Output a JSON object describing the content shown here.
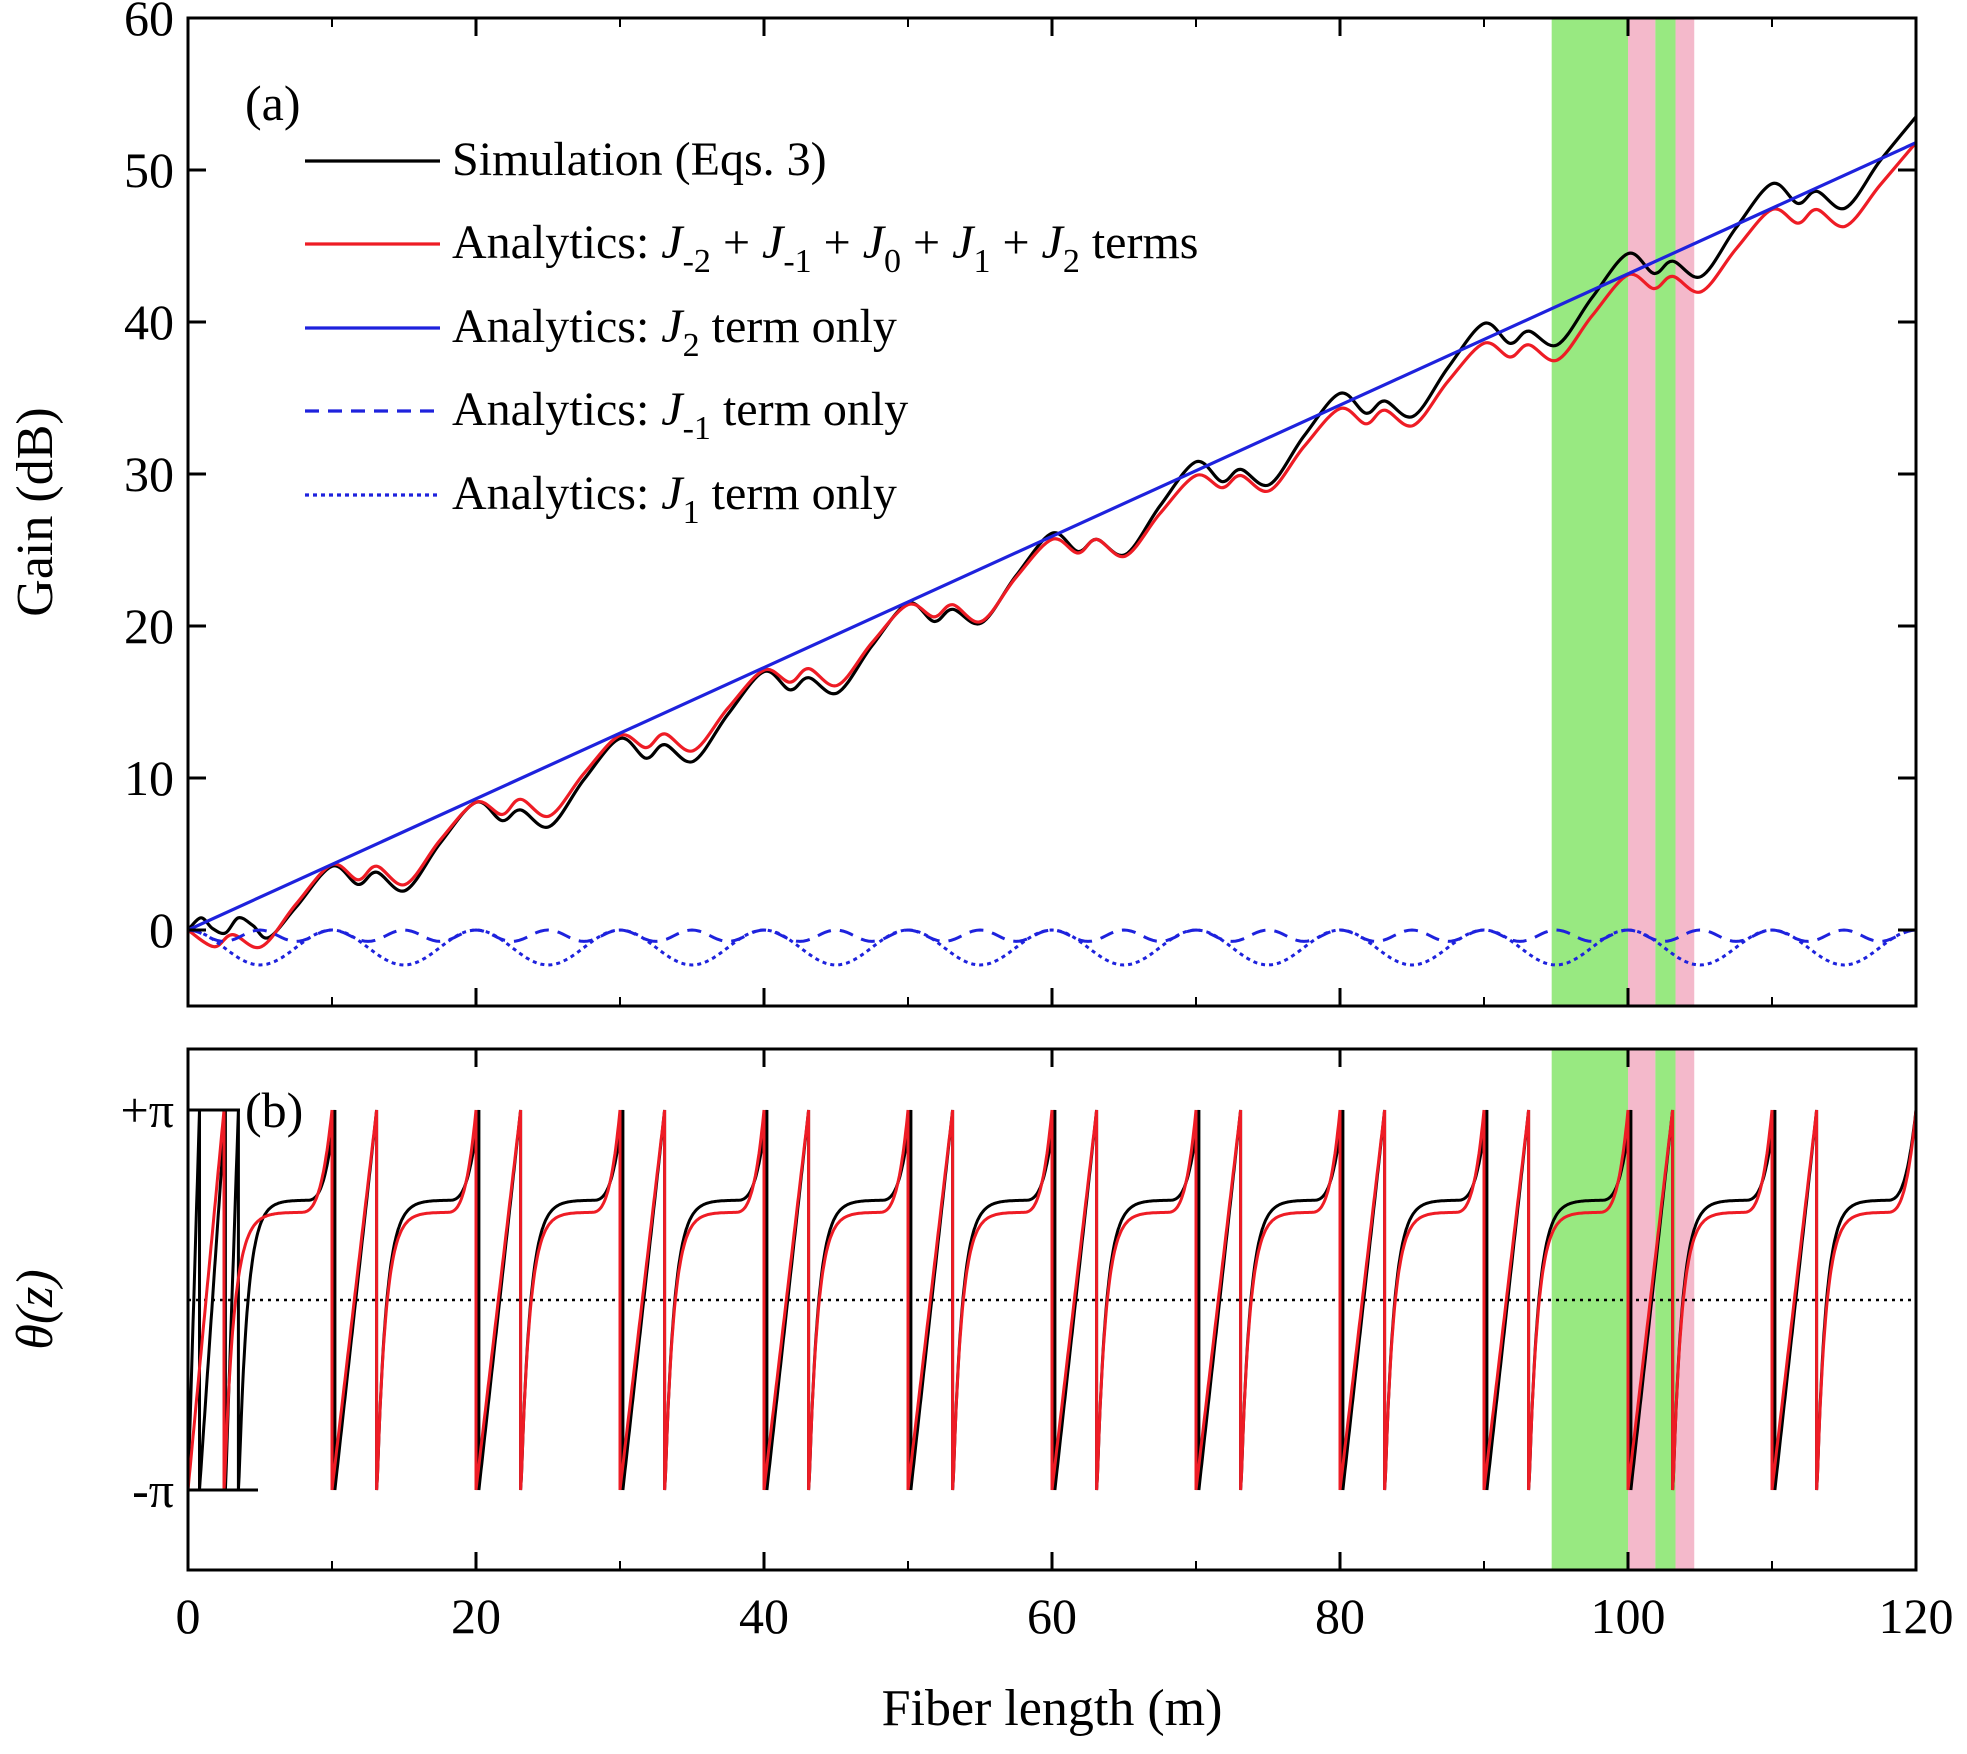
{
  "chart_data": [
    {
      "panel_label": "(a)",
      "type": "line",
      "xlabel": "",
      "ylabel": "Gain (dB)",
      "xlim": [
        0,
        120
      ],
      "ylim": [
        -5,
        60
      ],
      "x_ticks": [
        0,
        20,
        40,
        60,
        80,
        100,
        120
      ],
      "y_ticks": [
        0,
        10,
        20,
        30,
        40,
        50,
        60
      ],
      "y_tick_labels": [
        "0",
        "10",
        "20",
        "30",
        "40",
        "50",
        "60"
      ],
      "legend_placement": "top-left",
      "shaded_regions": [
        {
          "from": 94.7,
          "to": 100.0,
          "color": "#98e981"
        },
        {
          "from": 100.0,
          "to": 101.9,
          "color": "#f4b9cb"
        },
        {
          "from": 101.9,
          "to": 103.3,
          "color": "#98e981"
        },
        {
          "from": 103.3,
          "to": 104.6,
          "color": "#f4b9cb"
        }
      ],
      "series": [
        {
          "legend": {
            "pre": "Simulation (Eqs. 3)"
          },
          "color": "#000000",
          "dash": "solid",
          "function": "full_simulation",
          "x": [
            0,
            0.9,
            1.7,
            2.6,
            3.5,
            4.5,
            5.6,
            7.5,
            10.0,
            11.8,
            13.1,
            15.1,
            17.5,
            20.0,
            21.8,
            23.1,
            25.1,
            27.5,
            30.0,
            31.8,
            33.1,
            35.1,
            37.5,
            40.0,
            41.8,
            43.1,
            45.1,
            47.5,
            50.0,
            51.8,
            53.1,
            55.1,
            57.5,
            60.0,
            61.8,
            63.1,
            65.1,
            67.5,
            70.0,
            71.8,
            73.1,
            75.1,
            77.5,
            80.0,
            81.8,
            83.1,
            85.1,
            87.5,
            90.0,
            91.8,
            93.1,
            95.1,
            97.5,
            100.0,
            101.8,
            103.1,
            105.1,
            107.5,
            110.0,
            111.8,
            113.1,
            115.1,
            117.5,
            120.0
          ],
          "y": [
            0,
            0.8,
            0.1,
            -0.2,
            0.8,
            0.3,
            -0.5,
            1.5,
            4.2,
            3.0,
            3.8,
            2.6,
            5.7,
            8.4,
            7.2,
            7.9,
            6.8,
            9.9,
            12.6,
            11.3,
            12.2,
            11.1,
            14.2,
            17.0,
            15.8,
            16.6,
            15.6,
            18.7,
            21.5,
            20.3,
            21.1,
            20.2,
            23.3,
            26.1,
            24.9,
            25.7,
            24.7,
            27.9,
            30.8,
            29.5,
            30.3,
            29.3,
            32.5,
            35.3,
            34.0,
            34.8,
            33.8,
            37.0,
            39.9,
            38.6,
            39.4,
            38.5,
            41.6,
            44.5,
            43.2,
            44.0,
            43.0,
            46.2,
            49.1,
            47.8,
            48.6,
            47.5,
            50.6,
            53.5
          ]
        },
        {
          "legend": {
            "pre": "Analytics: ",
            "terms": [
              [
                "J",
                "-2"
              ],
              [
                "J",
                "-1"
              ],
              [
                "J",
                "0"
              ],
              [
                "J",
                "1"
              ],
              [
                "J",
                "2"
              ]
            ],
            "post": " terms"
          },
          "color": "#ee1c25",
          "dash": "solid",
          "function": "analytics_J_sum",
          "x": [
            0,
            1.8,
            3.1,
            5.1,
            7.5,
            10.0,
            11.8,
            13.1,
            15.1,
            17.5,
            20.0,
            21.8,
            23.1,
            25.1,
            27.5,
            30.0,
            31.8,
            33.1,
            35.1,
            37.5,
            40.0,
            41.8,
            43.1,
            45.1,
            47.5,
            50.0,
            51.8,
            53.1,
            55.1,
            57.5,
            60.0,
            61.8,
            63.1,
            65.1,
            67.5,
            70.0,
            71.8,
            73.1,
            75.1,
            77.5,
            80.0,
            81.8,
            83.1,
            85.1,
            87.5,
            90.0,
            91.8,
            93.1,
            95.1,
            97.5,
            100.0,
            101.8,
            103.1,
            105.1,
            107.5,
            110.0,
            111.8,
            113.1,
            115.1,
            117.5,
            120.0
          ],
          "y": [
            0,
            -1.1,
            -0.3,
            -1.1,
            1.7,
            4.3,
            3.3,
            4.2,
            3.0,
            5.9,
            8.4,
            7.6,
            8.6,
            7.5,
            10.3,
            12.8,
            12.0,
            12.9,
            11.8,
            14.6,
            17.1,
            16.3,
            17.2,
            16.1,
            18.9,
            21.4,
            20.6,
            21.4,
            20.3,
            23.2,
            25.7,
            24.8,
            25.7,
            24.6,
            27.4,
            29.9,
            29.1,
            29.9,
            28.9,
            31.8,
            34.3,
            33.3,
            34.2,
            33.2,
            36.1,
            38.6,
            37.7,
            38.5,
            37.5,
            40.4,
            43.1,
            42.2,
            43.0,
            42.0,
            44.8,
            47.4,
            46.5,
            47.4,
            46.3,
            49.0,
            51.8
          ]
        },
        {
          "legend": {
            "pre": "Analytics: ",
            "terms": [
              [
                "J",
                "2"
              ]
            ],
            "post": " term only"
          },
          "color": "#1e22dd",
          "dash": "solid",
          "function": "analytics_J2",
          "x": [
            0,
            120
          ],
          "y": [
            0,
            51.8
          ]
        },
        {
          "legend": {
            "pre": "Analytics: ",
            "terms": [
              [
                "J",
                "-1"
              ]
            ],
            "post": " term only"
          },
          "color": "#1e22dd",
          "dash": "dashed",
          "function": "analytics_Jm1",
          "x": [
            0,
            2.5,
            5.0,
            7.5,
            10.0,
            12.5,
            15.0,
            17.5,
            20.0,
            22.5,
            25.0,
            27.5,
            30.0,
            32.5,
            35.0,
            37.5,
            40.0,
            42.5,
            45.0,
            47.5,
            50.0,
            52.5,
            55.0,
            57.5,
            60.0,
            62.5,
            65.0,
            67.5,
            70.0,
            72.5,
            75.0,
            77.5,
            80.0,
            82.5,
            85.0,
            87.5,
            90.0,
            92.5,
            95.0,
            97.5,
            100.0,
            102.5,
            105.0,
            107.5,
            110.0,
            112.5,
            115.0,
            117.5,
            120.0
          ],
          "y": [
            0,
            -0.75,
            0,
            -0.75,
            0,
            -0.75,
            0,
            -0.75,
            0,
            -0.75,
            0,
            -0.75,
            0,
            -0.75,
            0,
            -0.75,
            0,
            -0.75,
            0,
            -0.75,
            0,
            -0.75,
            0,
            -0.75,
            0,
            -0.75,
            0,
            -0.75,
            0,
            -0.75,
            0,
            -0.75,
            0,
            -0.75,
            0,
            -0.75,
            0,
            -0.75,
            0,
            -0.75,
            0,
            -0.75,
            0,
            -0.75,
            0,
            -0.75,
            0,
            -0.75,
            0
          ]
        },
        {
          "legend": {
            "pre": "Analytics: ",
            "terms": [
              [
                "J",
                "1"
              ]
            ],
            "post": " term only"
          },
          "color": "#1e22dd",
          "dash": "dotted",
          "function": "analytics_J1",
          "x": [
            0,
            5,
            10,
            15,
            20,
            25,
            30,
            35,
            40,
            45,
            50,
            55,
            60,
            65,
            70,
            75,
            80,
            85,
            90,
            95,
            100,
            105,
            110,
            115,
            120
          ],
          "y": [
            0,
            -2.3,
            0,
            -2.3,
            0,
            -2.3,
            0,
            -2.3,
            0,
            -2.3,
            0,
            -2.3,
            0,
            -2.3,
            0,
            -2.3,
            0,
            -2.3,
            0,
            -2.3,
            0,
            -2.3,
            0,
            -2.3,
            0
          ]
        }
      ]
    },
    {
      "panel_label": "(b)",
      "type": "line",
      "xlabel": "Fiber length (m)",
      "ylabel": "θ(z)",
      "xlim": [
        0,
        120
      ],
      "ylim": [
        -3.14159,
        3.14159
      ],
      "x_ticks": [
        0,
        20,
        40,
        60,
        80,
        100,
        120
      ],
      "x_tick_labels": [
        "0",
        "20",
        "40",
        "60",
        "80",
        "100",
        "120"
      ],
      "y_ticks": [
        3.14159,
        -3.14159
      ],
      "y_tick_labels": [
        "+π",
        "-π"
      ],
      "reference_line": {
        "y": 0,
        "style": "dotted",
        "color": "#000000"
      },
      "shaded_regions": [
        {
          "from": 94.7,
          "to": 100.0,
          "color": "#98e981"
        },
        {
          "from": 100.0,
          "to": 101.9,
          "color": "#f4b9cb"
        },
        {
          "from": 101.9,
          "to": 103.3,
          "color": "#98e981"
        },
        {
          "from": 103.3,
          "to": 104.6,
          "color": "#f4b9cb"
        }
      ],
      "series": [
        {
          "name": "Simulation (Eqs. 3)",
          "color": "#000000",
          "function": "phase_sim",
          "period_m": 10,
          "x_range": [
            0,
            120
          ]
        },
        {
          "name": "Analytics: J-2 + J-1 + J0 + J1 + J2 terms",
          "color": "#ee1c25",
          "function": "phase_ana",
          "period_m": 10,
          "x_range": [
            0,
            120
          ]
        }
      ]
    }
  ]
}
